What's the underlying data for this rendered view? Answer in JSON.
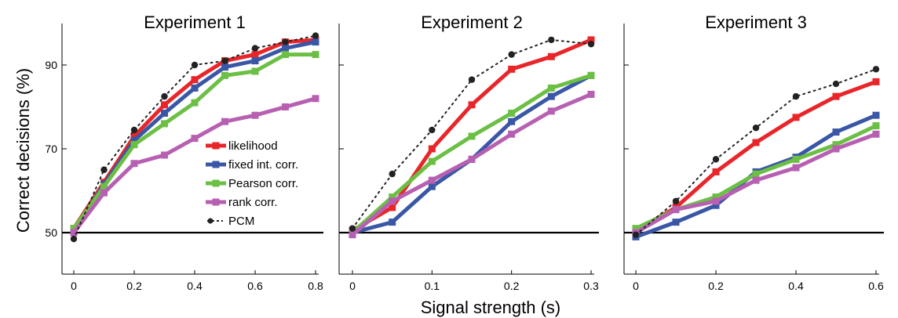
{
  "figure": {
    "ylabel": "Correct decisions (%)",
    "xlabel": "Signal strength (s)"
  },
  "legend": [
    {
      "label": "likelihood",
      "color": "#e8262a",
      "style": "solid"
    },
    {
      "label": "fixed int. corr.",
      "color": "#3a57a6",
      "style": "solid"
    },
    {
      "label": "Pearson corr.",
      "color": "#6cbf45",
      "style": "solid"
    },
    {
      "label": "rank corr.",
      "color": "#b760b2",
      "style": "solid"
    },
    {
      "label": "PCM",
      "color": "#222222",
      "style": "dotted"
    }
  ],
  "chart_data": [
    {
      "type": "line",
      "title": "Experiment 1",
      "ylim": [
        40,
        100
      ],
      "xlim": [
        -0.04,
        0.82
      ],
      "yticks": [
        50,
        70,
        90
      ],
      "xticks": [
        0,
        0.2,
        0.4,
        0.6,
        0.8
      ],
      "reference_line_y": 50,
      "x": [
        0,
        0.1,
        0.2,
        0.3,
        0.4,
        0.5,
        0.6,
        0.7,
        0.8
      ],
      "series": [
        {
          "name": "likelihood",
          "values": [
            51,
            62,
            73,
            80.5,
            86.5,
            91,
            92.5,
            95.5,
            96
          ]
        },
        {
          "name": "fixed int. corr.",
          "values": [
            50.5,
            61.5,
            72,
            78.5,
            84.5,
            89.5,
            91,
            94,
            95.5
          ]
        },
        {
          "name": "Pearson corr.",
          "values": [
            51,
            61,
            71,
            76,
            81,
            87.5,
            88.5,
            92.5,
            92.5
          ]
        },
        {
          "name": "rank corr.",
          "values": [
            50,
            59.5,
            66.5,
            68.5,
            72.5,
            76.5,
            78,
            80,
            82
          ]
        },
        {
          "name": "PCM",
          "values": [
            48.5,
            65,
            74.5,
            82.5,
            90,
            91,
            94,
            95.5,
            97
          ]
        }
      ]
    },
    {
      "type": "line",
      "title": "Experiment 2",
      "ylim": [
        40,
        100
      ],
      "xlim": [
        -0.01,
        0.31
      ],
      "yticks": [
        50,
        70,
        90
      ],
      "xticks": [
        0,
        0.1,
        0.2,
        0.3
      ],
      "reference_line_y": 50,
      "x": [
        0,
        0.05,
        0.1,
        0.15,
        0.2,
        0.25,
        0.3
      ],
      "series": [
        {
          "name": "likelihood",
          "values": [
            50.5,
            56,
            70,
            80.5,
            89,
            92,
            96
          ]
        },
        {
          "name": "fixed int. corr.",
          "values": [
            50,
            52.5,
            61,
            67.5,
            76.5,
            82.5,
            87.5
          ]
        },
        {
          "name": "Pearson corr.",
          "values": [
            50,
            58.5,
            67,
            73,
            78.5,
            84.5,
            87.5
          ]
        },
        {
          "name": "rank corr.",
          "values": [
            49.5,
            57.5,
            62.5,
            67.5,
            73.5,
            79,
            83
          ]
        },
        {
          "name": "PCM",
          "values": [
            51,
            64,
            74.5,
            86.5,
            92.5,
            96,
            95
          ]
        }
      ]
    },
    {
      "type": "line",
      "title": "Experiment 3",
      "ylim": [
        40,
        100
      ],
      "xlim": [
        -0.02,
        0.62
      ],
      "yticks": [
        50,
        70,
        90
      ],
      "xticks": [
        0,
        0.2,
        0.4,
        0.6
      ],
      "reference_line_y": 50,
      "x": [
        0,
        0.1,
        0.2,
        0.3,
        0.4,
        0.5,
        0.6
      ],
      "series": [
        {
          "name": "likelihood",
          "values": [
            50.5,
            56,
            64.5,
            71.5,
            77.5,
            82.5,
            86
          ]
        },
        {
          "name": "fixed int. corr.",
          "values": [
            49,
            52.5,
            56.5,
            64.5,
            68,
            74,
            78
          ]
        },
        {
          "name": "Pearson corr.",
          "values": [
            51,
            55.5,
            58.5,
            64,
            67.5,
            71,
            75.5
          ]
        },
        {
          "name": "rank corr.",
          "values": [
            50,
            55.5,
            57.5,
            62.5,
            65.5,
            70,
            73.5
          ]
        },
        {
          "name": "PCM",
          "values": [
            49.5,
            57.5,
            67.5,
            75,
            82.5,
            85.5,
            89
          ]
        }
      ]
    }
  ]
}
